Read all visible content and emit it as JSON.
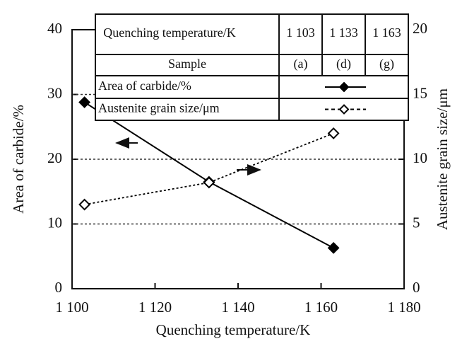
{
  "chart_data": {
    "type": "line",
    "x_label": "Quenching temperature/K",
    "y_label": "Area of carbide/%",
    "y2_label": "Austenite grain size/μm",
    "x": [
      1103,
      1133,
      1163
    ],
    "series": [
      {
        "name": "Area of carbide/%",
        "color": "#000000",
        "values": [
          28.8,
          16.5,
          6.3
        ],
        "marker": "filled-diamond",
        "line": "solid"
      },
      {
        "name": "Austenite grain size/μm",
        "color": "#000000",
        "values": [
          6.5,
          8.2,
          12.0
        ],
        "marker": "open-diamond",
        "line": "dotted",
        "axis": "y2"
      }
    ],
    "xlim": [
      1100,
      1180
    ],
    "xticks": [
      {
        "value": 1100,
        "label": "1 100"
      },
      {
        "value": 1120,
        "label": "1 120"
      },
      {
        "value": 1140,
        "label": "1 140"
      },
      {
        "value": 1160,
        "label": "1 160"
      },
      {
        "value": 1180,
        "label": "1 180"
      }
    ],
    "ylim": [
      0,
      40
    ],
    "yticks": [
      0,
      10,
      20,
      30,
      40
    ],
    "y2lim": [
      0,
      20
    ],
    "y2ticks": [
      0,
      5,
      10,
      15,
      20
    ],
    "grid": true,
    "table": {
      "header": [
        "Quenching temperature/K",
        "1 103",
        "1 133",
        "1 163"
      ],
      "sample_row": [
        "Sample",
        "(a)",
        "(d)",
        "(g)"
      ]
    }
  }
}
